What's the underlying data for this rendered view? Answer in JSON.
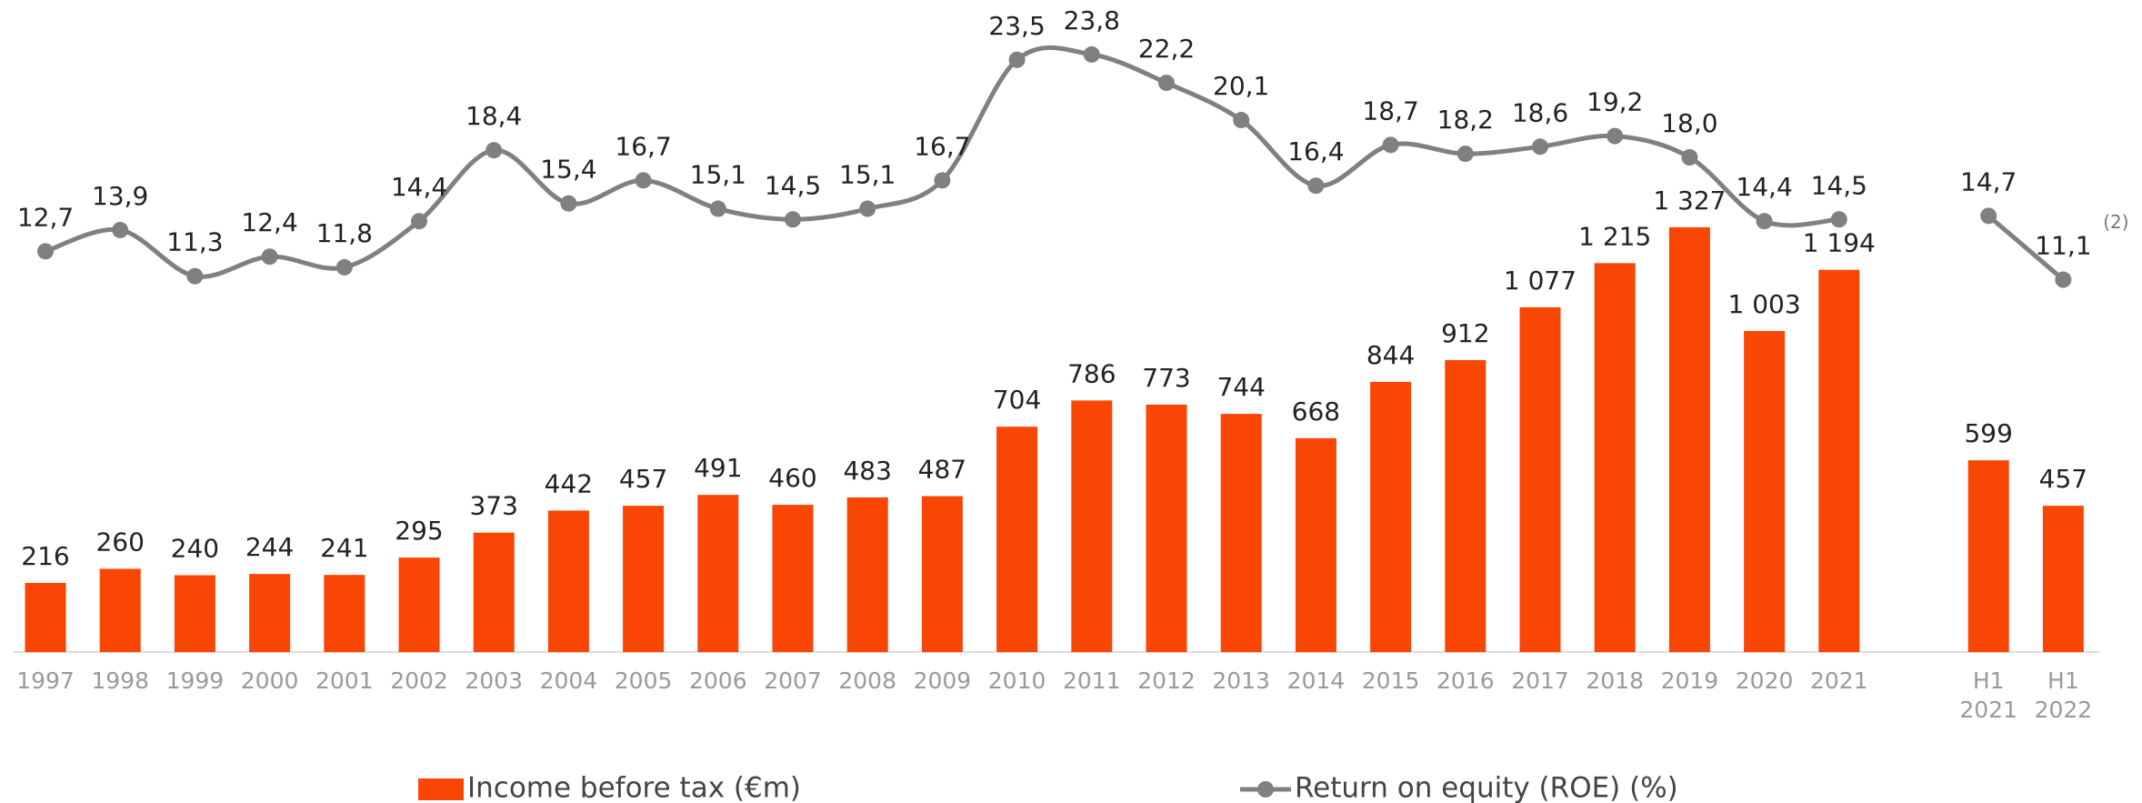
{
  "chart_data": {
    "type": "bar_line",
    "categories": [
      "1997",
      "1998",
      "1999",
      "2000",
      "2001",
      "2002",
      "2003",
      "2004",
      "2005",
      "2006",
      "2007",
      "2008",
      "2009",
      "2010",
      "2011",
      "2012",
      "2013",
      "2014",
      "2015",
      "2016",
      "2017",
      "2018",
      "2019",
      "2020",
      "2021",
      null,
      "H1 2021",
      "H1 2022"
    ],
    "ylim": [
      0,
      2000
    ],
    "y2lim": [
      0,
      26
    ],
    "series": [
      {
        "name": "Income before tax (€m)",
        "type": "bar",
        "color": "#f94605",
        "values": [
          216,
          260,
          240,
          244,
          241,
          295,
          373,
          442,
          457,
          491,
          460,
          483,
          487,
          704,
          786,
          773,
          744,
          668,
          844,
          912,
          1077,
          1215,
          1327,
          1003,
          1194,
          null,
          599,
          457
        ],
        "value_labels": [
          "216",
          "260",
          "240",
          "244",
          "241",
          "295",
          "373",
          "442",
          "457",
          "491",
          "460",
          "483",
          "487",
          "704",
          "786",
          "773",
          "744",
          "668",
          "844",
          "912",
          "1 077",
          "1 215",
          "1 327",
          "1 003",
          "1 194",
          null,
          "599",
          "457"
        ]
      },
      {
        "name": "Return on equity (ROE) (%)",
        "type": "line",
        "axis": "y2",
        "color": "#808080",
        "values": [
          12.7,
          13.9,
          11.3,
          12.4,
          11.8,
          14.4,
          18.4,
          15.4,
          16.7,
          15.1,
          14.5,
          15.1,
          16.7,
          23.5,
          23.8,
          22.2,
          20.1,
          16.4,
          18.7,
          18.2,
          18.6,
          19.2,
          18.0,
          14.4,
          14.5,
          null,
          14.7,
          11.1
        ],
        "value_labels": [
          "12,7",
          "13,9",
          "11,3",
          "12,4",
          "11,8",
          "14,4",
          "18,4",
          "15,4",
          "16,7",
          "15,1",
          "14,5",
          "15,1",
          "16,7",
          "23,5",
          "23,8",
          "22,2",
          "20,1",
          "16,4",
          "18,7",
          "18,2",
          "18,6",
          "19,2",
          "18,0",
          "14,4",
          "14,5",
          null,
          "14,7",
          "11,1"
        ]
      }
    ],
    "annotations": [
      "(2)"
    ]
  }
}
